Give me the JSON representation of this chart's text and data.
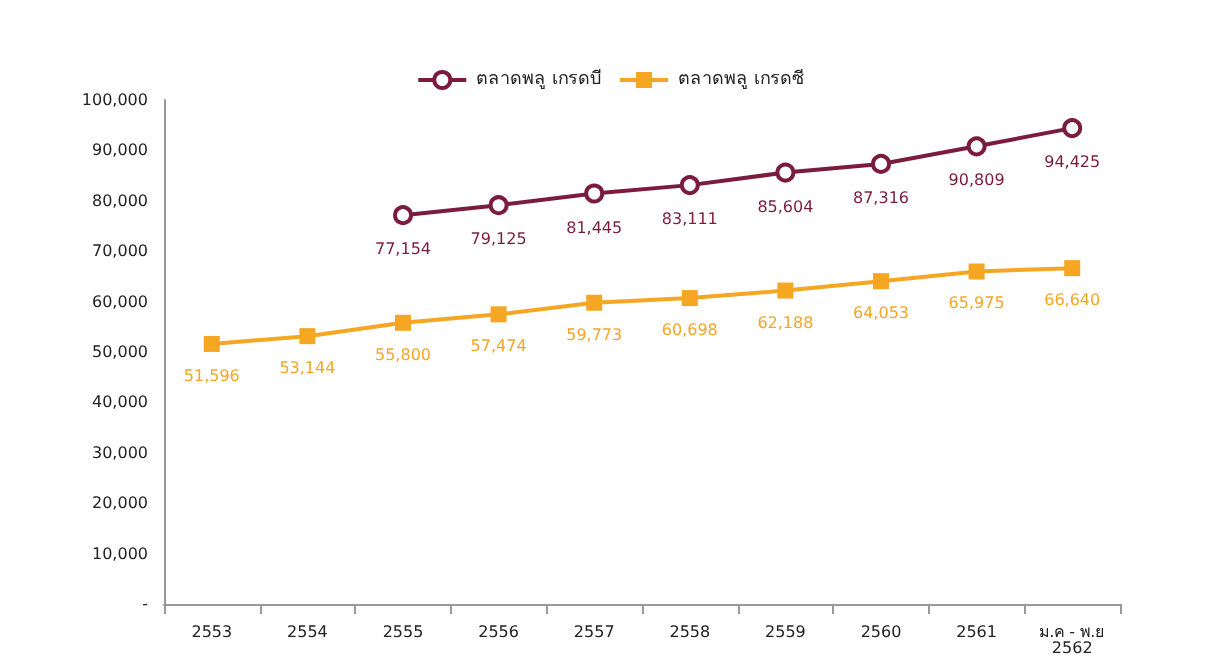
{
  "chart_data": {
    "type": "line",
    "categories": [
      "2553",
      "2554",
      "2555",
      "2556",
      "2557",
      "2558",
      "2559",
      "2560",
      "2561",
      "ม.ค - พ.ย\n2562"
    ],
    "series": [
      {
        "name": "ตลาดพลู เกรดบี",
        "color": "#7b1c3e",
        "marker": "circle",
        "values": [
          null,
          null,
          77154,
          79125,
          81445,
          83111,
          85604,
          87316,
          90809,
          94425
        ],
        "value_labels": [
          null,
          null,
          "77,154",
          "79,125",
          "81,445",
          "83,111",
          "85,604",
          "87,316",
          "90,809",
          "94,425"
        ]
      },
      {
        "name": "ตลาดพลู เกรดซี",
        "color": "#f5a623",
        "marker": "square",
        "values": [
          51596,
          53144,
          55800,
          57474,
          59773,
          60698,
          62188,
          64053,
          65975,
          66640
        ],
        "value_labels": [
          "51,596",
          "53,144",
          "55,800",
          "57,474",
          "59,773",
          "60,698",
          "62,188",
          "64,053",
          "65,975",
          "66,640"
        ]
      }
    ],
    "ylim": [
      0,
      100000
    ],
    "yticks": [
      {
        "value": 0,
        "label": "-"
      },
      {
        "value": 10000,
        "label": "10,000"
      },
      {
        "value": 20000,
        "label": "20,000"
      },
      {
        "value": 30000,
        "label": "30,000"
      },
      {
        "value": 40000,
        "label": "40,000"
      },
      {
        "value": 50000,
        "label": "50,000"
      },
      {
        "value": 60000,
        "label": "60,000"
      },
      {
        "value": 70000,
        "label": "70,000"
      },
      {
        "value": 80000,
        "label": "80,000"
      },
      {
        "value": 90000,
        "label": "90,000"
      },
      {
        "value": 100000,
        "label": "100,000"
      }
    ],
    "grid": false,
    "legend": "top"
  }
}
